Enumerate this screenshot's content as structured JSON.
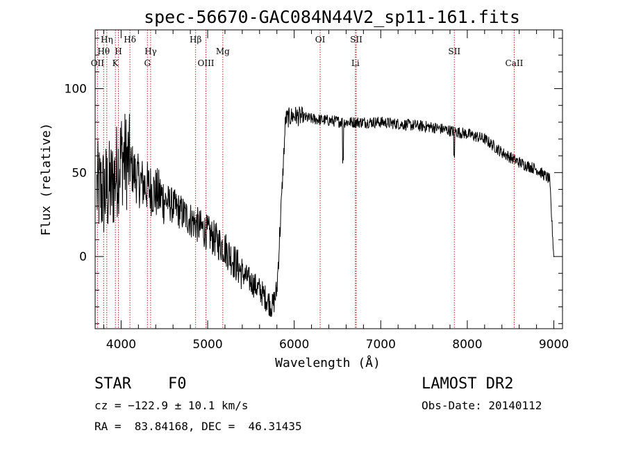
{
  "chart_data": {
    "type": "line",
    "title": "spec-56670-GAC084N44V2_sp11-161.fits",
    "xlabel": "Wavelength (Å)",
    "ylabel": "Flux (relative)",
    "xlim": [
      3700,
      9100
    ],
    "ylim": [
      -43,
      135
    ],
    "xticks": [
      "4000",
      "5000",
      "6000",
      "7000",
      "8000",
      "9000"
    ],
    "yticks": [
      "0",
      "50",
      "100"
    ],
    "grid": false,
    "line_color": "#000000",
    "marker_color": "#b22222",
    "spectral_lines": [
      {
        "name": "OII",
        "wave": 3727,
        "row": 3
      },
      {
        "name": "Hθ",
        "wave": 3798,
        "row": 2
      },
      {
        "name": "Hη",
        "wave": 3835,
        "row": 1
      },
      {
        "name": "K",
        "wave": 3934,
        "row": 3
      },
      {
        "name": "H",
        "wave": 3969,
        "row": 2
      },
      {
        "name": "Hδ",
        "wave": 4102,
        "row": 1
      },
      {
        "name": "G",
        "wave": 4304,
        "row": 3
      },
      {
        "name": "Hγ",
        "wave": 4341,
        "row": 2
      },
      {
        "name": "Hβ",
        "wave": 4861,
        "row": 1
      },
      {
        "name": "OIII",
        "wave": 4980,
        "row": 3
      },
      {
        "name": "Mg",
        "wave": 5175,
        "row": 2
      },
      {
        "name": "OI",
        "wave": 6300,
        "row": 1
      },
      {
        "name": "SII",
        "wave": 6717,
        "row": 1
      },
      {
        "name": "Li",
        "wave": 6707,
        "row": 3
      },
      {
        "name": "SII",
        "wave": 7850,
        "row": 2
      },
      {
        "name": "CaII",
        "wave": 8542,
        "row": 3
      }
    ],
    "continuum": [
      [
        3700,
        40
      ],
      [
        3800,
        38
      ],
      [
        3900,
        42
      ],
      [
        4000,
        60
      ],
      [
        4100,
        55
      ],
      [
        4200,
        45
      ],
      [
        4400,
        38
      ],
      [
        4600,
        30
      ],
      [
        4800,
        22
      ],
      [
        5000,
        14
      ],
      [
        5200,
        5
      ],
      [
        5400,
        -10
      ],
      [
        5600,
        -20
      ],
      [
        5750,
        -30
      ],
      [
        5800,
        -20
      ],
      [
        5850,
        30
      ],
      [
        5900,
        82
      ],
      [
        6000,
        84
      ],
      [
        6200,
        82
      ],
      [
        6400,
        81
      ],
      [
        6600,
        80
      ],
      [
        6800,
        80
      ],
      [
        7000,
        80
      ],
      [
        7200,
        79
      ],
      [
        7400,
        78
      ],
      [
        7600,
        77
      ],
      [
        7800,
        75
      ],
      [
        8000,
        73
      ],
      [
        8200,
        70
      ],
      [
        8400,
        62
      ],
      [
        8600,
        56
      ],
      [
        8800,
        52
      ],
      [
        8950,
        46
      ],
      [
        9000,
        0
      ]
    ]
  },
  "info": {
    "class": "STAR",
    "subclass": "F0",
    "survey": "LAMOST DR2",
    "cz": "cz = −122.9 ± 10.1 km/s",
    "obs_date": "Obs-Date: 20140112",
    "coords": "RA =  83.84168, DEC =  46.31435"
  }
}
